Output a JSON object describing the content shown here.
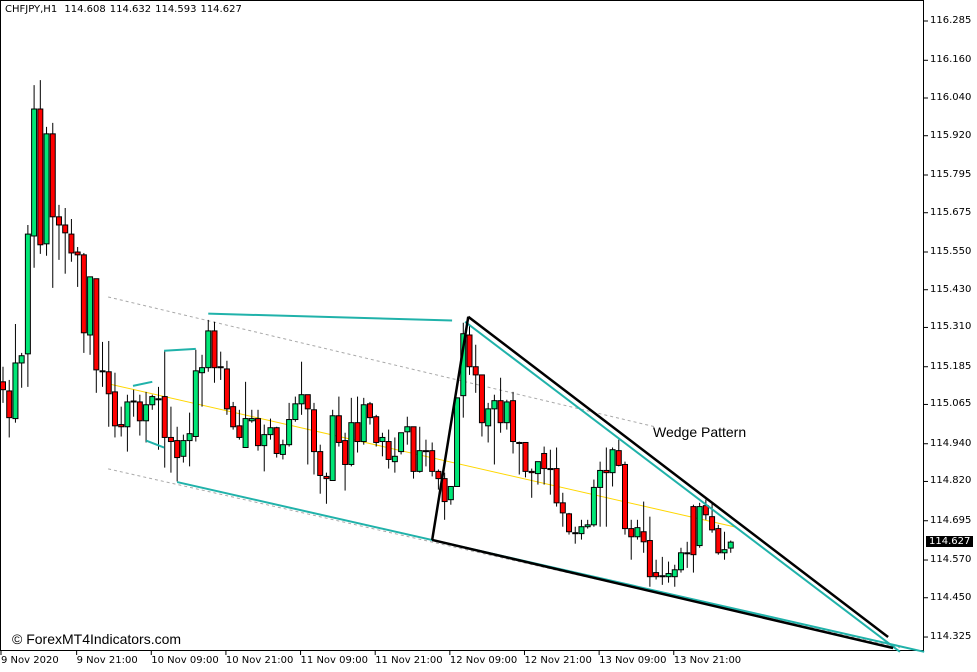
{
  "header": {
    "symbol": "CHFJPY,H1",
    "open": "114.608",
    "high": "114.632",
    "low": "114.593",
    "close": "114.627"
  },
  "watermark": "© ForexMT4Indicators.com",
  "annotation": "Wedge Pattern",
  "current_price": "114.627",
  "colors": {
    "bull": "#00e676",
    "bear": "#ff0000",
    "outline": "#000000",
    "trendline": "#20b2aa",
    "wedge": "#000000",
    "ma": "#ffd700",
    "channel": "#a9a9a9"
  },
  "chart_data": {
    "type": "candlestick",
    "ylim": [
      114.27,
      116.35
    ],
    "price_ticks": [
      "116.285",
      "116.160",
      "116.040",
      "115.920",
      "115.795",
      "115.675",
      "115.550",
      "115.430",
      "115.310",
      "115.185",
      "115.065",
      "114.940",
      "114.820",
      "114.695",
      "114.570",
      "114.450",
      "114.325"
    ],
    "time_ticks": [
      {
        "bar": 0,
        "label": "9 Nov 2020"
      },
      {
        "bar": 12,
        "label": "9 Nov 21:00"
      },
      {
        "bar": 24,
        "label": "10 Nov 09:00"
      },
      {
        "bar": 36,
        "label": "10 Nov 21:00"
      },
      {
        "bar": 48,
        "label": "11 Nov 09:00"
      },
      {
        "bar": 60,
        "label": "11 Nov 21:00"
      },
      {
        "bar": 72,
        "label": "12 Nov 09:00"
      },
      {
        "bar": 84,
        "label": "12 Nov 21:00"
      },
      {
        "bar": 96,
        "label": "13 Nov 09:00"
      },
      {
        "bar": 108,
        "label": "13 Nov 21:00"
      }
    ],
    "ohlc": [
      [
        115.137,
        115.185,
        115.07,
        115.112
      ],
      [
        115.108,
        115.143,
        114.96,
        115.023
      ],
      [
        115.02,
        115.321,
        115.007,
        115.197
      ],
      [
        115.197,
        115.229,
        115.118,
        115.22
      ],
      [
        115.226,
        115.636,
        115.121,
        115.607
      ],
      [
        115.601,
        116.081,
        115.5,
        116.005
      ],
      [
        116.005,
        116.097,
        115.544,
        115.573
      ],
      [
        115.576,
        115.948,
        115.538,
        115.926
      ],
      [
        115.926,
        115.961,
        115.436,
        115.662
      ],
      [
        115.662,
        115.7,
        115.525,
        115.636
      ],
      [
        115.636,
        115.69,
        115.481,
        115.611
      ],
      [
        115.607,
        115.655,
        115.519,
        115.547
      ],
      [
        115.55,
        115.566,
        115.439,
        115.541
      ],
      [
        115.541,
        115.547,
        115.229,
        115.293
      ],
      [
        115.286,
        115.471,
        115.223,
        115.471
      ],
      [
        115.465,
        115.465,
        115.102,
        115.175
      ],
      [
        115.169,
        115.264,
        115.121,
        115.172
      ],
      [
        115.169,
        115.267,
        114.994,
        115.099
      ],
      [
        115.105,
        115.166,
        114.96,
        114.997
      ],
      [
        115.001,
        115.058,
        114.963,
        114.994
      ],
      [
        114.994,
        115.096,
        114.915,
        115.073
      ],
      [
        115.073,
        115.112,
        115.026,
        115.076
      ],
      [
        115.073,
        115.096,
        114.966,
        115.013
      ],
      [
        115.013,
        115.105,
        114.944,
        115.064
      ],
      [
        115.064,
        115.096,
        115.048,
        115.09
      ],
      [
        115.08,
        115.121,
        114.921,
        115.083
      ],
      [
        115.09,
        115.236,
        114.864,
        114.96
      ],
      [
        114.96,
        115.058,
        114.848,
        114.947
      ],
      [
        114.95,
        114.994,
        114.82,
        114.896
      ],
      [
        114.9,
        114.969,
        114.88,
        114.95
      ],
      [
        114.95,
        115.039,
        114.868,
        114.972
      ],
      [
        114.963,
        115.239,
        114.947,
        115.172
      ],
      [
        115.166,
        115.223,
        115.058,
        115.182
      ],
      [
        115.182,
        115.334,
        115.169,
        115.299
      ],
      [
        115.299,
        115.328,
        115.134,
        115.182
      ],
      [
        115.182,
        115.233,
        115.143,
        115.185
      ],
      [
        115.178,
        115.204,
        115.032,
        115.051
      ],
      [
        115.058,
        115.073,
        114.985,
        114.994
      ],
      [
        114.997,
        115.048,
        114.953,
        114.96
      ],
      [
        114.928,
        115.137,
        114.928,
        115.02
      ],
      [
        115.013,
        115.048,
        115.007,
        115.02
      ],
      [
        115.02,
        115.048,
        114.918,
        114.934
      ],
      [
        114.934,
        115.001,
        114.852,
        114.969
      ],
      [
        114.969,
        115.02,
        114.953,
        114.991
      ],
      [
        114.991,
        114.994,
        114.896,
        114.909
      ],
      [
        114.906,
        114.953,
        114.89,
        114.937
      ],
      [
        114.937,
        115.07,
        114.931,
        115.017
      ],
      [
        115.017,
        115.09,
        115.01,
        115.067
      ],
      [
        115.067,
        115.201,
        115.032,
        115.096
      ],
      [
        115.096,
        115.096,
        114.874,
        115.051
      ],
      [
        115.048,
        115.07,
        114.842,
        114.915
      ],
      [
        114.915,
        114.937,
        114.781,
        114.839
      ],
      [
        114.836,
        114.848,
        114.749,
        114.829
      ],
      [
        114.823,
        115.048,
        114.823,
        115.029
      ],
      [
        115.029,
        115.09,
        114.931,
        114.944
      ],
      [
        114.95,
        114.975,
        114.791,
        114.874
      ],
      [
        114.874,
        115.086,
        114.868,
        115.007
      ],
      [
        115.007,
        115.09,
        114.912,
        114.947
      ],
      [
        114.947,
        115.086,
        114.937,
        115.064
      ],
      [
        115.067,
        115.073,
        115.001,
        115.023
      ],
      [
        115.026,
        115.032,
        114.931,
        114.944
      ],
      [
        114.947,
        114.975,
        114.9,
        114.96
      ],
      [
        114.947,
        114.985,
        114.861,
        114.89
      ],
      [
        114.883,
        114.96,
        114.848,
        114.9
      ],
      [
        114.915,
        114.975,
        114.906,
        114.975
      ],
      [
        114.978,
        115.026,
        114.937,
        114.994
      ],
      [
        114.994,
        114.994,
        114.829,
        114.852
      ],
      [
        114.852,
        114.994,
        114.848,
        114.918
      ],
      [
        114.918,
        114.953,
        114.868,
        114.918
      ],
      [
        114.918,
        114.944,
        114.836,
        114.852
      ],
      [
        114.852,
        114.858,
        114.794,
        114.829
      ],
      [
        114.829,
        114.848,
        114.698,
        114.756
      ],
      [
        114.762,
        114.804,
        114.746,
        114.804
      ],
      [
        114.804,
        115.086,
        114.804,
        115.086
      ],
      [
        115.093,
        115.325,
        115.023,
        115.29
      ],
      [
        115.286,
        115.318,
        115.159,
        115.185
      ],
      [
        115.185,
        115.255,
        115.102,
        115.159
      ],
      [
        115.159,
        115.159,
        114.963,
        115.007
      ],
      [
        114.997,
        115.07,
        114.944,
        115.051
      ],
      [
        115.051,
        115.096,
        114.874,
        115.077
      ],
      [
        115.077,
        115.15,
        114.975,
        115.007
      ],
      [
        115.007,
        115.08,
        114.985,
        115.073
      ],
      [
        115.077,
        115.105,
        114.909,
        114.947
      ],
      [
        114.944,
        114.947,
        114.842,
        114.944
      ],
      [
        114.944,
        114.944,
        114.833,
        114.852
      ],
      [
        114.852,
        114.861,
        114.768,
        114.848
      ],
      [
        114.845,
        114.883,
        114.81,
        114.883
      ],
      [
        114.909,
        114.931,
        114.81,
        114.861
      ],
      [
        114.861,
        114.921,
        114.778,
        114.861
      ],
      [
        114.861,
        114.928,
        114.74,
        114.752
      ],
      [
        114.752,
        114.784,
        114.676,
        114.72
      ],
      [
        114.717,
        114.72,
        114.651,
        114.66
      ],
      [
        114.657,
        114.676,
        114.622,
        114.657
      ],
      [
        114.654,
        114.698,
        114.635,
        114.676
      ],
      [
        114.676,
        114.698,
        114.67,
        114.682
      ],
      [
        114.682,
        114.826,
        114.676,
        114.801
      ],
      [
        114.801,
        114.883,
        114.676,
        114.855
      ],
      [
        114.855,
        114.928,
        114.676,
        114.848
      ],
      [
        114.848,
        114.928,
        114.804,
        114.921
      ],
      [
        114.918,
        114.953,
        114.868,
        114.871
      ],
      [
        114.874,
        114.883,
        114.651,
        114.67
      ],
      [
        114.67,
        114.698,
        114.571,
        114.644
      ],
      [
        114.644,
        114.698,
        114.635,
        114.673
      ],
      [
        114.66,
        114.756,
        114.593,
        114.628
      ],
      [
        114.632,
        114.708,
        114.485,
        114.517
      ],
      [
        114.53,
        114.571,
        114.508,
        114.517
      ],
      [
        114.52,
        114.58,
        114.491,
        114.517
      ],
      [
        114.517,
        114.565,
        114.498,
        114.527
      ],
      [
        114.517,
        114.555,
        114.485,
        114.539
      ],
      [
        114.539,
        114.609,
        114.53,
        114.593
      ],
      [
        114.593,
        114.628,
        114.545,
        114.593
      ],
      [
        114.74,
        114.746,
        114.53,
        114.587
      ],
      [
        114.616,
        114.752,
        114.609,
        114.74
      ],
      [
        114.743,
        114.762,
        114.698,
        114.714
      ],
      [
        114.708,
        114.752,
        114.657,
        114.666
      ],
      [
        114.67,
        114.682,
        114.587,
        114.593
      ],
      [
        114.593,
        114.66,
        114.571,
        114.603
      ],
      [
        114.608,
        114.632,
        114.593,
        114.627
      ]
    ],
    "objects": [
      {
        "kind": "channel",
        "points": [
          [
            16.9,
            115.407
          ],
          [
            104.8,
            114.994
          ]
        ]
      },
      {
        "kind": "channel",
        "points": [
          [
            16.9,
            114.86
          ],
          [
            144.2,
            114.291
          ]
        ]
      },
      {
        "kind": "ma",
        "points": [
          [
            16.9,
            115.131
          ],
          [
            117.7,
            114.675
          ]
        ]
      },
      {
        "kind": "trendline",
        "points": [
          [
            20.9,
            115.124
          ],
          [
            24.0,
            115.137
          ]
        ]
      },
      {
        "kind": "trendline",
        "points": [
          [
            23.0,
            114.95
          ],
          [
            25.9,
            114.928
          ]
        ]
      },
      {
        "kind": "trendline",
        "points": [
          [
            25.9,
            115.236
          ],
          [
            31.0,
            115.242
          ]
        ]
      },
      {
        "kind": "trendline",
        "points": [
          [
            33.0,
            115.354
          ],
          [
            72.2,
            115.332
          ]
        ]
      },
      {
        "kind": "trendline",
        "points": [
          [
            28.0,
            114.818
          ],
          [
            148.1,
            114.278
          ]
        ]
      },
      {
        "kind": "trendline",
        "points": [
          [
            74.3,
            115.328
          ],
          [
            144.2,
            114.278
          ]
        ]
      },
      {
        "kind": "wedge",
        "points": [
          [
            69.0,
            114.634
          ],
          [
            74.8,
            115.344
          ]
        ]
      },
      {
        "kind": "wedge",
        "points": [
          [
            74.8,
            115.344
          ],
          [
            142.3,
            114.325
          ]
        ]
      },
      {
        "kind": "wedge",
        "points": [
          [
            69.0,
            114.634
          ],
          [
            143.1,
            114.29
          ]
        ]
      }
    ]
  }
}
